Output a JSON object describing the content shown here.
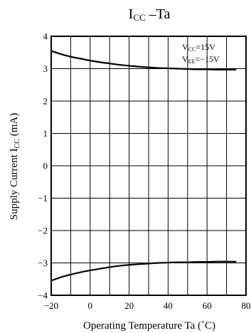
{
  "chart_data": {
    "type": "line",
    "title": {
      "main": "I",
      "sub": "CC",
      "tail": " –Ta"
    },
    "xlabel": "Operating Temperature  Ta (˚C)",
    "ylabel": {
      "main": "Supply Current  I",
      "sub": "CC",
      "tail": " (mA)"
    },
    "xlim": [
      -20,
      80
    ],
    "ylim": [
      -4,
      4
    ],
    "xticks": [
      -20,
      0,
      20,
      40,
      60,
      80
    ],
    "xtick_labels": [
      "−20",
      "0",
      "20",
      "40",
      "60",
      "80"
    ],
    "yticks": [
      4,
      3,
      2,
      1,
      0,
      -1,
      -2,
      -3,
      -4
    ],
    "ytick_labels": [
      "4",
      "3",
      "2",
      "1",
      "0",
      "−1",
      "−2",
      "−3",
      "−4"
    ],
    "x_grid_step": 10,
    "y_grid_step": 1,
    "grid": true,
    "annotations": [
      {
        "main": "V",
        "sub": "CC",
        "tail": "=15V"
      },
      {
        "main": "V",
        "sub": "EE",
        "tail": "=−15V"
      }
    ],
    "series": [
      {
        "x": [
          -20,
          -15,
          -10,
          -5,
          0,
          5,
          10,
          15,
          20,
          25,
          30,
          35,
          40,
          45,
          50,
          55,
          60,
          65,
          70,
          75
        ],
        "values": [
          3.55,
          3.45,
          3.37,
          3.31,
          3.25,
          3.2,
          3.16,
          3.12,
          3.09,
          3.06,
          3.04,
          3.02,
          3.01,
          3.0,
          2.99,
          2.98,
          2.98,
          2.97,
          2.97,
          2.97
        ]
      },
      {
        "x": [
          -20,
          -15,
          -10,
          -5,
          0,
          5,
          10,
          15,
          20,
          25,
          30,
          35,
          40,
          45,
          50,
          55,
          60,
          65,
          70,
          75
        ],
        "values": [
          -3.55,
          -3.44,
          -3.36,
          -3.29,
          -3.23,
          -3.18,
          -3.13,
          -3.09,
          -3.06,
          -3.04,
          -3.02,
          -3.0,
          -2.99,
          -2.98,
          -2.98,
          -2.97,
          -2.97,
          -2.96,
          -2.96,
          -2.96
        ]
      }
    ]
  }
}
